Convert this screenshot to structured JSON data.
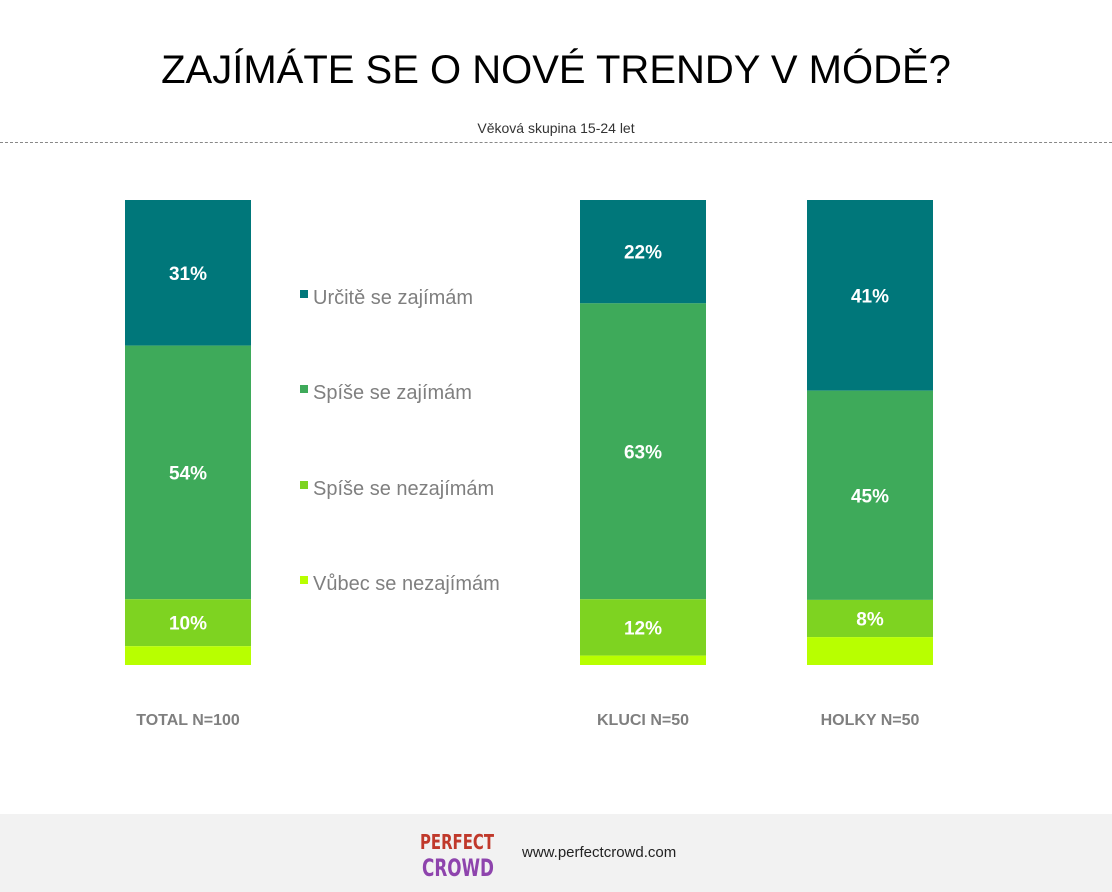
{
  "title": "ZAJÍMÁTE SE O NOVÉ TRENDY V MÓDĚ?",
  "subtitle": "Věková skupina 15-24 let",
  "footer": {
    "url": "www.perfectcrowd.com",
    "logo_text_line1": "PERFECT",
    "logo_text_line2": "CROWD"
  },
  "colors": {
    "Určitě se zajímám": "#00777a",
    "Spíše se zajímám": "#3eaa5a",
    "Spíše se nezajímám": "#7ed321",
    "Vůbec se nezajímám": "#b8ff00"
  },
  "chart_data": {
    "type": "bar",
    "stacked": true,
    "percent": true,
    "categories": [
      "TOTAL N=100",
      "KLUCI N=50",
      "HOLKY N=50"
    ],
    "series": [
      {
        "name": "Určitě se zajímám",
        "values": [
          31,
          22,
          41
        ]
      },
      {
        "name": "Spíše se zajímám",
        "values": [
          54,
          63,
          45
        ]
      },
      {
        "name": "Spíše se nezajímám",
        "values": [
          10,
          12,
          8
        ]
      },
      {
        "name": "Vůbec se nezajímám",
        "values": [
          4,
          2,
          6
        ]
      }
    ],
    "data_labels": [
      [
        "31%",
        "22%",
        "41%"
      ],
      [
        "54%",
        "63%",
        "45%"
      ],
      [
        "10%",
        "12%",
        "8%"
      ],
      [
        "",
        "",
        ""
      ]
    ],
    "legend_position": "center",
    "ylim": [
      0,
      100
    ],
    "grid": false
  }
}
